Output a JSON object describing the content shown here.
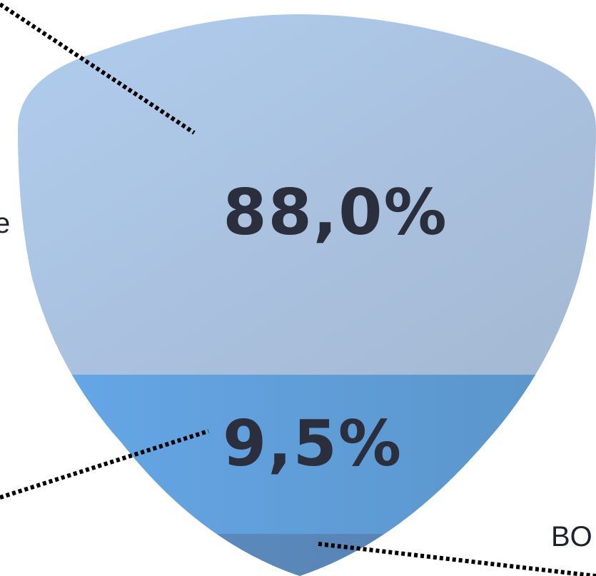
{
  "chart_data": {
    "type": "funnel",
    "segments": [
      {
        "label_text": "88,0%",
        "value": 88.0,
        "color": "#a9c5e6"
      },
      {
        "label_text": "9,5%",
        "value": 9.5,
        "color": "#64a2dd"
      },
      {
        "label_text": "",
        "value": 2.5,
        "color": "#5a88b8"
      }
    ],
    "edge_labels": {
      "left_fragment": "e",
      "bottom_right_fragment": "BO"
    }
  }
}
